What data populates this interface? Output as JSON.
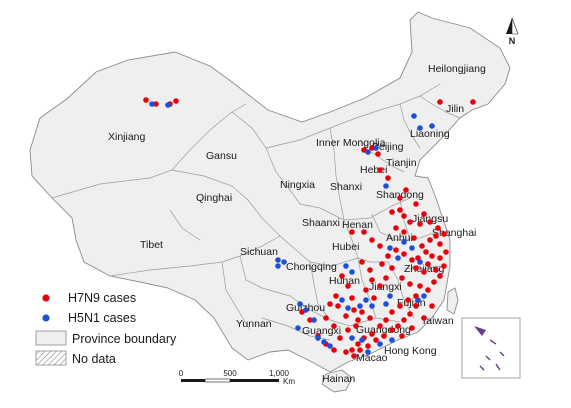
{
  "map": {
    "north_label": "N",
    "provinces": [
      {
        "id": "xinjiang",
        "label": "Xinjiang"
      },
      {
        "id": "tibet",
        "label": "Tibet"
      },
      {
        "id": "qinghai",
        "label": "Qinghai"
      },
      {
        "id": "gansu",
        "label": "Gansu"
      },
      {
        "id": "inner-mongolia",
        "label": "Inner Mongolia"
      },
      {
        "id": "heilongjiang",
        "label": "Heilongjiang"
      },
      {
        "id": "jilin",
        "label": "Jilin"
      },
      {
        "id": "liaoning",
        "label": "Liaoning"
      },
      {
        "id": "beijing",
        "label": "Beijing"
      },
      {
        "id": "tianjin",
        "label": "Tianjin"
      },
      {
        "id": "hebei",
        "label": "Hebei"
      },
      {
        "id": "shandong",
        "label": "Shandong"
      },
      {
        "id": "ningxia",
        "label": "Ningxia"
      },
      {
        "id": "shanxi",
        "label": "Shanxi"
      },
      {
        "id": "shaanxi",
        "label": "Shaanxi"
      },
      {
        "id": "henan",
        "label": "Henan"
      },
      {
        "id": "jiangsu",
        "label": "Jiangsu"
      },
      {
        "id": "anhui",
        "label": "Anhui"
      },
      {
        "id": "shanghai",
        "label": "Shanghai"
      },
      {
        "id": "sichuan",
        "label": "Sichuan"
      },
      {
        "id": "chongqing",
        "label": "Chongqing"
      },
      {
        "id": "hubei",
        "label": "Hubei"
      },
      {
        "id": "zhejiang",
        "label": "Zhejiang"
      },
      {
        "id": "hunan",
        "label": "Hunan"
      },
      {
        "id": "jiangxi",
        "label": "Jiangxi"
      },
      {
        "id": "fujian",
        "label": "Fujian"
      },
      {
        "id": "guizhou",
        "label": "Guizhou"
      },
      {
        "id": "yunnan",
        "label": "Yunnan"
      },
      {
        "id": "guangxi",
        "label": "Guangxi"
      },
      {
        "id": "guangdong",
        "label": "Guangdong"
      },
      {
        "id": "taiwan",
        "label": "Taiwan"
      },
      {
        "id": "hong-kong",
        "label": "Hong Kong"
      },
      {
        "id": "macao",
        "label": "Macao"
      },
      {
        "id": "hainan",
        "label": "Hainan"
      }
    ]
  },
  "legend": {
    "h7n9": "H7N9 cases",
    "h5n1": "H5N1 cases",
    "boundary": "Province boundary",
    "nodata": "No data"
  },
  "scale": {
    "ticks": [
      "0",
      "500",
      "1,000"
    ],
    "unit": "Km"
  },
  "colors": {
    "h7n9": "#e8000b",
    "h5n1": "#1e4fd8",
    "land": "#efefef",
    "boundary": "#8a8a8a"
  }
}
